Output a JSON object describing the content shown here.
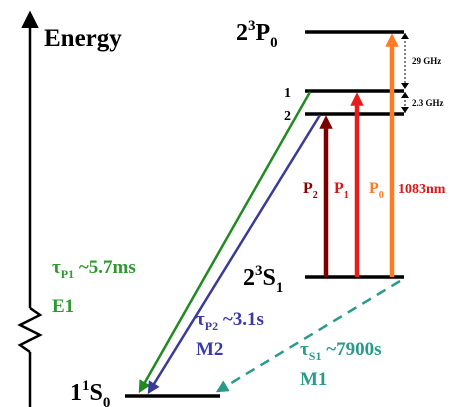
{
  "axis": {
    "label": "Energy"
  },
  "levels": {
    "ground": {
      "term": "1",
      "sup": "1",
      "letter": "S",
      "sub": "0"
    },
    "metastable": {
      "term": "2",
      "sup": "3",
      "letter": "S",
      "sub": "1"
    },
    "p0": {
      "term": "2",
      "sup": "3",
      "letter": "P",
      "sub": "0"
    },
    "p1_label": "1",
    "p2_label": "2"
  },
  "splittings": {
    "p0_p1": "29 GHz",
    "p1_p2": "2.3 GHz"
  },
  "transitions": {
    "p2": {
      "letter": "P",
      "sub": "2"
    },
    "p1": {
      "letter": "P",
      "sub": "1"
    },
    "p0": {
      "letter": "P",
      "sub": "0"
    },
    "wavelength": "1083nm"
  },
  "decays": {
    "e1": {
      "tau": "τ",
      "sub": "P1",
      "value": " ~5.7ms",
      "type": "E1"
    },
    "m2": {
      "tau": "τ",
      "sub": "P2",
      "value": " ~3.1s",
      "type": "M2"
    },
    "m1": {
      "tau": "τ",
      "sub": "S1",
      "value": " ~7900s",
      "type": "M1"
    }
  },
  "colors": {
    "black": "#000000",
    "green": "#218a21",
    "navy": "#3a3a9a",
    "teal": "#2a9a8a",
    "darkred": "#7a0000",
    "red": "#e81c1c",
    "orange": "#ff7a22",
    "text_green": "#2e9a2e",
    "text_navy": "#3a3aaa",
    "text_teal": "#2a9a8a",
    "text_darkred": "#8b0000",
    "text_red": "#d81818",
    "text_orange": "#ff7a22"
  }
}
